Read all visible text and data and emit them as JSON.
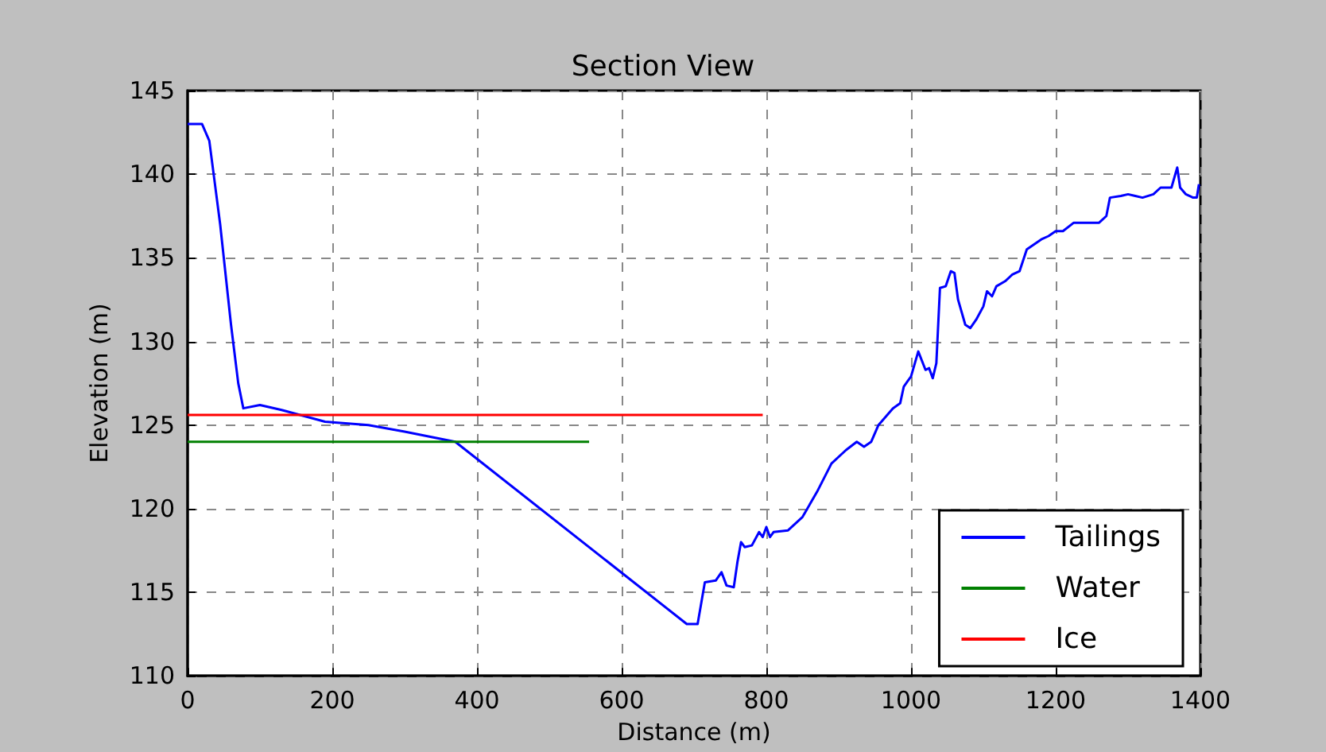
{
  "chart_data": {
    "type": "line",
    "title": "Section View",
    "xlabel": "Distance (m)",
    "ylabel": "Elevation (m)",
    "xlim": [
      0,
      1400
    ],
    "xticks": [
      0,
      200,
      400,
      600,
      800,
      1000,
      1200,
      1400
    ],
    "ylim": [
      110,
      145
    ],
    "yticks": [
      110,
      115,
      120,
      125,
      130,
      135,
      140,
      145
    ],
    "grid": true,
    "legend": "bottom right",
    "marker": "none",
    "line_style": "solid",
    "series": [
      {
        "name": "Tailings",
        "color": "#0000ff",
        "x": [
          0,
          20,
          30,
          45,
          60,
          70,
          77,
          100,
          130,
          190,
          250,
          300,
          370,
          690,
          705,
          715,
          730,
          738,
          745,
          755,
          760,
          765,
          770,
          780,
          790,
          795,
          800,
          805,
          810,
          830,
          850,
          870,
          890,
          910,
          925,
          935,
          945,
          955,
          965,
          975,
          985,
          990,
          995,
          1000,
          1010,
          1020,
          1025,
          1030,
          1035,
          1040,
          1048,
          1055,
          1060,
          1065,
          1075,
          1082,
          1090,
          1100,
          1105,
          1112,
          1118,
          1130,
          1140,
          1150,
          1160,
          1170,
          1180,
          1190,
          1200,
          1210,
          1225,
          1260,
          1270,
          1275,
          1290,
          1300,
          1310,
          1320,
          1335,
          1345,
          1360,
          1368,
          1372,
          1380,
          1390,
          1395,
          1398
        ],
        "values": [
          143,
          143,
          142,
          137,
          131,
          127.5,
          126,
          126.2,
          125.9,
          125.2,
          125,
          124.6,
          124,
          113.1,
          113.1,
          115.6,
          115.7,
          116.2,
          115.4,
          115.3,
          116.8,
          118,
          117.7,
          117.8,
          118.6,
          118.3,
          118.9,
          118.3,
          118.6,
          118.7,
          119.5,
          121,
          122.7,
          123.5,
          124,
          123.7,
          124,
          125,
          125.5,
          126,
          126.3,
          127.3,
          127.6,
          127.9,
          129.4,
          128.3,
          128.4,
          127.8,
          128.7,
          133.2,
          133.3,
          134.2,
          134.1,
          132.5,
          131,
          130.8,
          131.3,
          132.1,
          133,
          132.7,
          133.3,
          133.6,
          134,
          134.2,
          135.5,
          135.8,
          136.1,
          136.3,
          136.6,
          136.6,
          137.1,
          137.1,
          137.5,
          138.6,
          138.7,
          138.8,
          138.7,
          138.6,
          138.8,
          139.2,
          139.2,
          140.4,
          139.2,
          138.8,
          138.6,
          138.6,
          139.4
        ]
      },
      {
        "name": "Water",
        "color": "#008000",
        "x": [
          0,
          555
        ],
        "values": [
          124,
          124
        ]
      },
      {
        "name": "Ice",
        "color": "#ff0000",
        "x": [
          0,
          795
        ],
        "values": [
          125.6,
          125.6
        ]
      }
    ]
  }
}
